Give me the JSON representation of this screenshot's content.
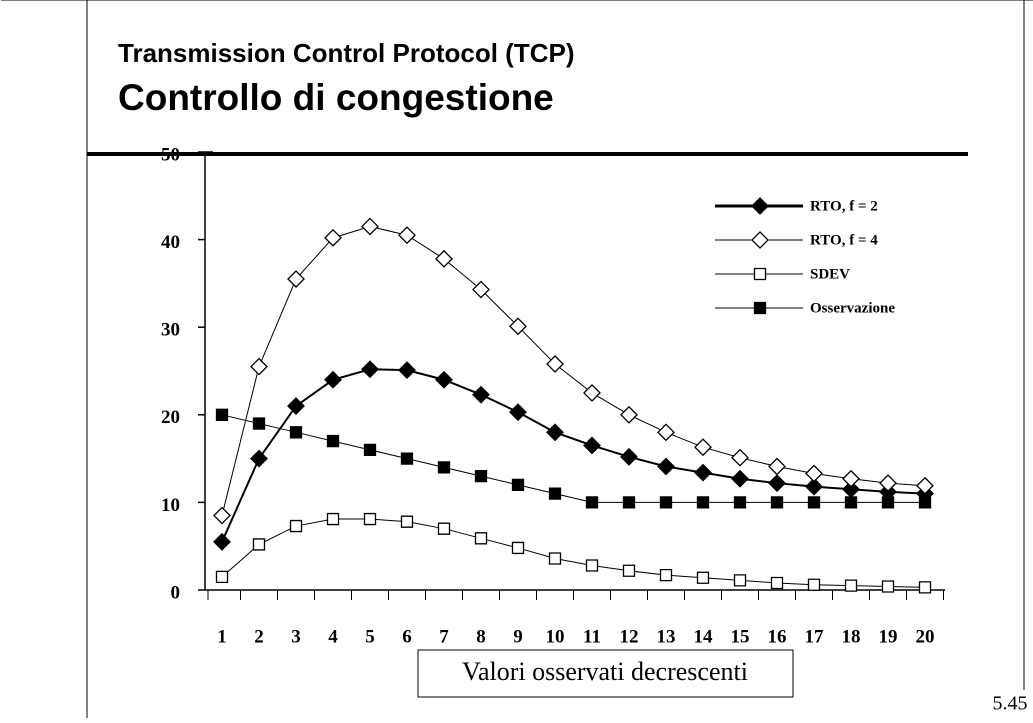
{
  "header": {
    "title": "Transmission Control Protocol (TCP)",
    "subtitle": "Controllo di congestione"
  },
  "page_number": "5.45",
  "chart_data": {
    "type": "line",
    "xlabel": "Valori osservati decrescenti",
    "x": [
      1,
      2,
      3,
      4,
      5,
      6,
      7,
      8,
      9,
      10,
      11,
      12,
      13,
      14,
      15,
      16,
      17,
      18,
      19,
      20
    ],
    "ylim": [
      0,
      50
    ],
    "yticks": [
      0,
      10,
      20,
      30,
      40,
      50
    ],
    "series": [
      {
        "name": "RTO, f = 2",
        "color": "#000000",
        "marker": "diamond",
        "filled": true,
        "thick": true,
        "values": [
          5.5,
          15,
          21,
          24,
          25.2,
          25.1,
          24,
          22.3,
          20.3,
          18,
          16.5,
          15.2,
          14.1,
          13.4,
          12.7,
          12.2,
          11.8,
          11.5,
          11.2,
          11
        ]
      },
      {
        "name": "RTO, f = 4",
        "color": "#000000",
        "marker": "diamond",
        "filled": false,
        "thick": false,
        "values": [
          8.5,
          25.5,
          35.5,
          40.2,
          41.5,
          40.5,
          37.8,
          34.3,
          30.1,
          25.8,
          22.5,
          20,
          18,
          16.3,
          15.1,
          14.1,
          13.3,
          12.7,
          12.2,
          11.9
        ]
      },
      {
        "name": "SDEV",
        "color": "#000000",
        "marker": "square",
        "filled": false,
        "thick": false,
        "values": [
          1.5,
          5.2,
          7.3,
          8.1,
          8.1,
          7.8,
          7,
          5.9,
          4.8,
          3.6,
          2.8,
          2.2,
          1.7,
          1.4,
          1.1,
          0.8,
          0.6,
          0.5,
          0.4,
          0.3
        ]
      },
      {
        "name": "Osservazione",
        "color": "#000000",
        "marker": "square",
        "filled": true,
        "thick": false,
        "values": [
          20,
          19,
          18,
          17,
          16,
          15,
          14,
          13,
          12,
          11,
          10,
          10,
          10,
          10,
          10,
          10,
          10,
          10,
          10,
          10
        ]
      }
    ]
  }
}
